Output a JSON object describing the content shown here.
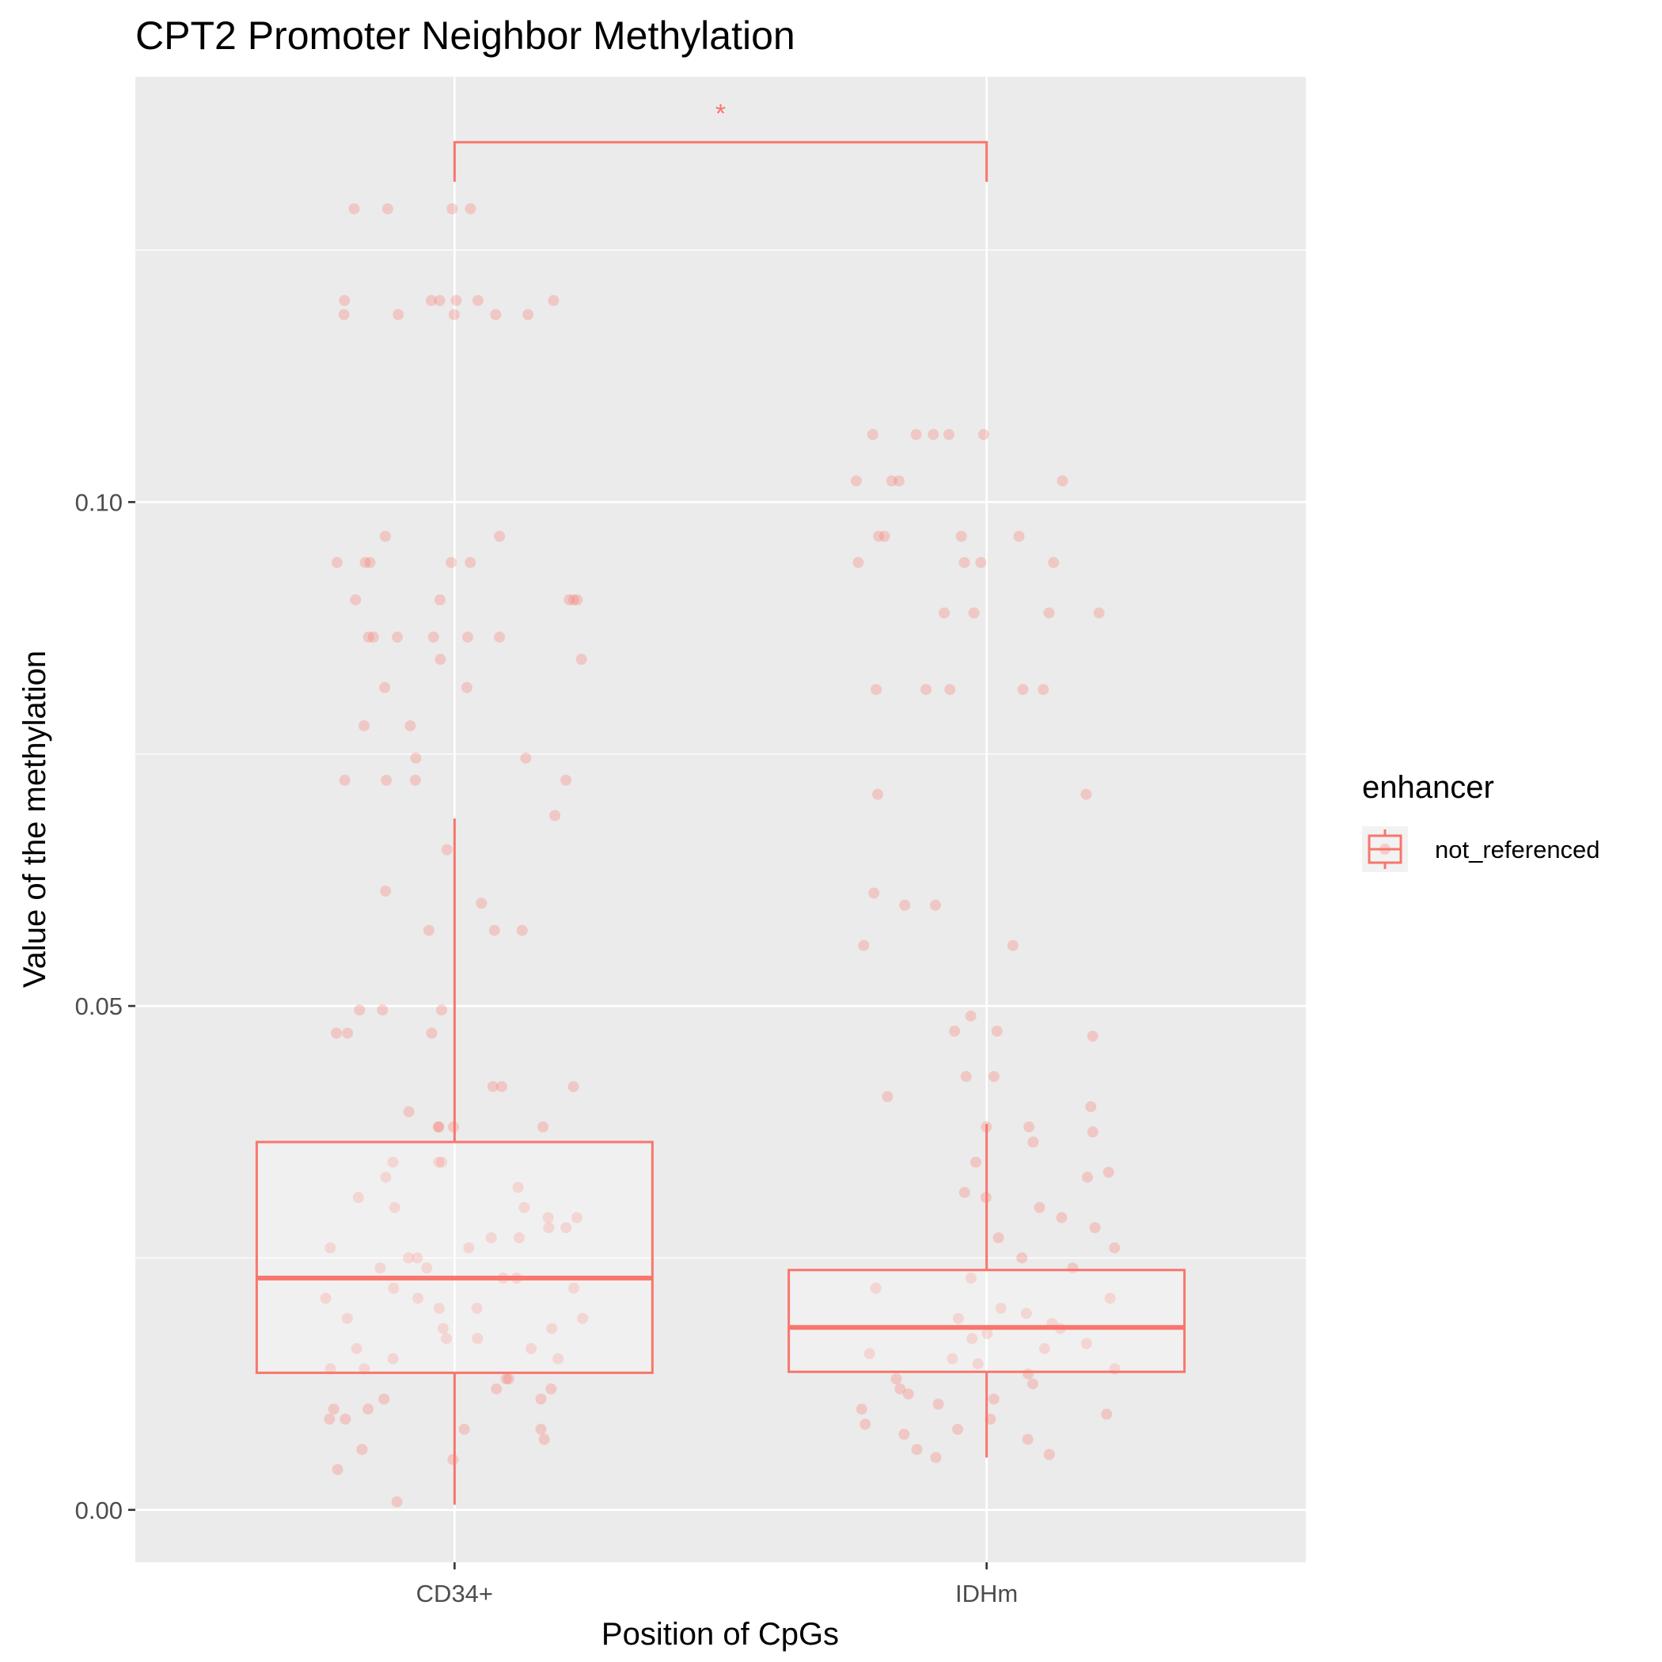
{
  "chart_data": {
    "type": "box",
    "title": "CPT2 Promoter Neighbor Methylation",
    "xlabel": "Position of CpGs",
    "ylabel": "Value of the methylation",
    "categories": [
      "CD34+",
      "IDHm"
    ],
    "ylim": [
      -0.0052,
      0.1422
    ],
    "yticks": [
      0.0,
      0.05,
      0.1
    ],
    "ytick_labels": [
      "0.00",
      "0.05",
      "0.10"
    ],
    "grid": true,
    "legend": {
      "title": "enhancer",
      "position": "right",
      "entries": [
        "not_referenced"
      ]
    },
    "color": "#f8766d",
    "panel_background": "#ebebeb",
    "boxes": [
      {
        "category": "CD34+",
        "lower_whisker": 0.0005,
        "q1": 0.0136,
        "median": 0.023,
        "q3": 0.0365,
        "upper_whisker": 0.0686
      },
      {
        "category": "IDHm",
        "lower_whisker": 0.0052,
        "q1": 0.0137,
        "median": 0.0181,
        "q3": 0.0238,
        "upper_whisker": 0.0383
      }
    ],
    "significance": {
      "from": "CD34+",
      "to": "IDHm",
      "label": "*",
      "y": 0.1357
    },
    "points": [
      {
        "category": "CD34+",
        "y": [
          0.1291,
          0.1291,
          0.1291,
          0.1291,
          0.12,
          0.12,
          0.12,
          0.12,
          0.12,
          0.12,
          0.1186,
          0.1186,
          0.1186,
          0.1186,
          0.1186,
          0.0966,
          0.0966,
          0.094,
          0.094,
          0.094,
          0.094,
          0.094,
          0.0903,
          0.0903,
          0.0903,
          0.0903,
          0.0903,
          0.0866,
          0.0866,
          0.0866,
          0.0866,
          0.0866,
          0.0866,
          0.0844,
          0.0844,
          0.0816,
          0.0816,
          0.0778,
          0.0778,
          0.0746,
          0.0746,
          0.0724,
          0.0724,
          0.0724,
          0.0724,
          0.0689,
          0.0655,
          0.0614,
          0.0602,
          0.0575,
          0.0575,
          0.0575,
          0.0496,
          0.0496,
          0.0496,
          0.0473,
          0.0473,
          0.0473,
          0.042,
          0.042,
          0.042,
          0.0395,
          0.038,
          0.038,
          0.038,
          0.038,
          0.0345,
          0.0345,
          0.0345,
          0.033,
          0.032,
          0.031,
          0.03,
          0.03,
          0.029,
          0.029,
          0.028,
          0.028,
          0.027,
          0.027,
          0.026,
          0.026,
          0.025,
          0.025,
          0.024,
          0.024,
          0.023,
          0.023,
          0.022,
          0.022,
          0.021,
          0.021,
          0.02,
          0.02,
          0.019,
          0.019,
          0.018,
          0.018,
          0.017,
          0.017,
          0.016,
          0.016,
          0.015,
          0.015,
          0.014,
          0.014,
          0.013,
          0.013,
          0.012,
          0.012,
          0.011,
          0.011,
          0.01,
          0.01,
          0.009,
          0.009,
          0.008,
          0.008,
          0.007,
          0.006,
          0.005,
          0.004,
          0.0008
        ]
      },
      {
        "category": "IDHm",
        "y": [
          0.1067,
          0.1067,
          0.1067,
          0.1067,
          0.1067,
          0.1021,
          0.1021,
          0.1021,
          0.1021,
          0.0966,
          0.0966,
          0.0966,
          0.0966,
          0.094,
          0.094,
          0.094,
          0.094,
          0.089,
          0.089,
          0.089,
          0.089,
          0.0814,
          0.0814,
          0.0814,
          0.0814,
          0.0814,
          0.071,
          0.071,
          0.0612,
          0.06,
          0.06,
          0.056,
          0.056,
          0.049,
          0.0475,
          0.0475,
          0.047,
          0.043,
          0.043,
          0.041,
          0.04,
          0.038,
          0.038,
          0.0375,
          0.0365,
          0.0345,
          0.0335,
          0.033,
          0.0315,
          0.031,
          0.03,
          0.029,
          0.028,
          0.027,
          0.026,
          0.025,
          0.024,
          0.023,
          0.022,
          0.021,
          0.02,
          0.0195,
          0.019,
          0.0185,
          0.018,
          0.0175,
          0.017,
          0.0165,
          0.016,
          0.0155,
          0.015,
          0.0145,
          0.014,
          0.0135,
          0.013,
          0.0125,
          0.012,
          0.0115,
          0.011,
          0.0105,
          0.01,
          0.0095,
          0.009,
          0.0085,
          0.008,
          0.0075,
          0.007,
          0.006,
          0.0055,
          0.0052
        ]
      }
    ]
  }
}
